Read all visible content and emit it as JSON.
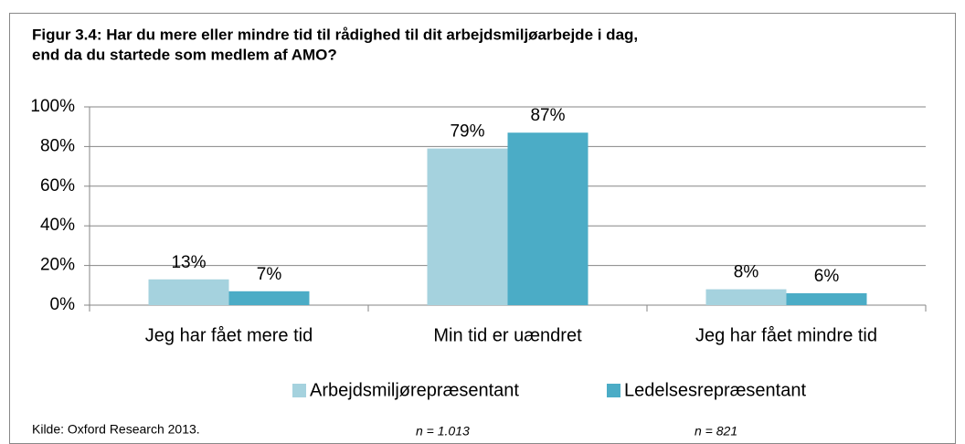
{
  "chart_data": {
    "type": "bar",
    "title": [
      "Figur 3.4: Har du mere eller mindre tid til rådighed til dit arbejdsmiljøarbejde i dag,",
      "end da du startede som medlem af AMO?"
    ],
    "categories": [
      "Jeg har fået mere tid",
      "Min tid er uændret",
      "Jeg har fået mindre tid"
    ],
    "series": [
      {
        "name": "Arbejdsmiljørepræsentant",
        "color": "#a5d2de",
        "values": [
          13,
          79,
          8
        ],
        "value_labels": [
          "13%",
          "79%",
          "8%"
        ]
      },
      {
        "name": "Ledelsesrepræsentant",
        "color": "#4bacc6",
        "values": [
          7,
          87,
          6
        ],
        "value_labels": [
          "7%",
          "87%",
          "6%"
        ]
      }
    ],
    "ylim": [
      0,
      100
    ],
    "yticks": [
      {
        "value": 0,
        "label": "0%"
      },
      {
        "value": 20,
        "label": "20%"
      },
      {
        "value": 40,
        "label": "40%"
      },
      {
        "value": 60,
        "label": "60%"
      },
      {
        "value": 80,
        "label": "80%"
      },
      {
        "value": 100,
        "label": "100%"
      }
    ],
    "grid": true,
    "legend": "bottom",
    "source": "Kilde: Oxford Research 2013.",
    "notes": [
      "n = 1.013",
      "n = 821"
    ]
  }
}
